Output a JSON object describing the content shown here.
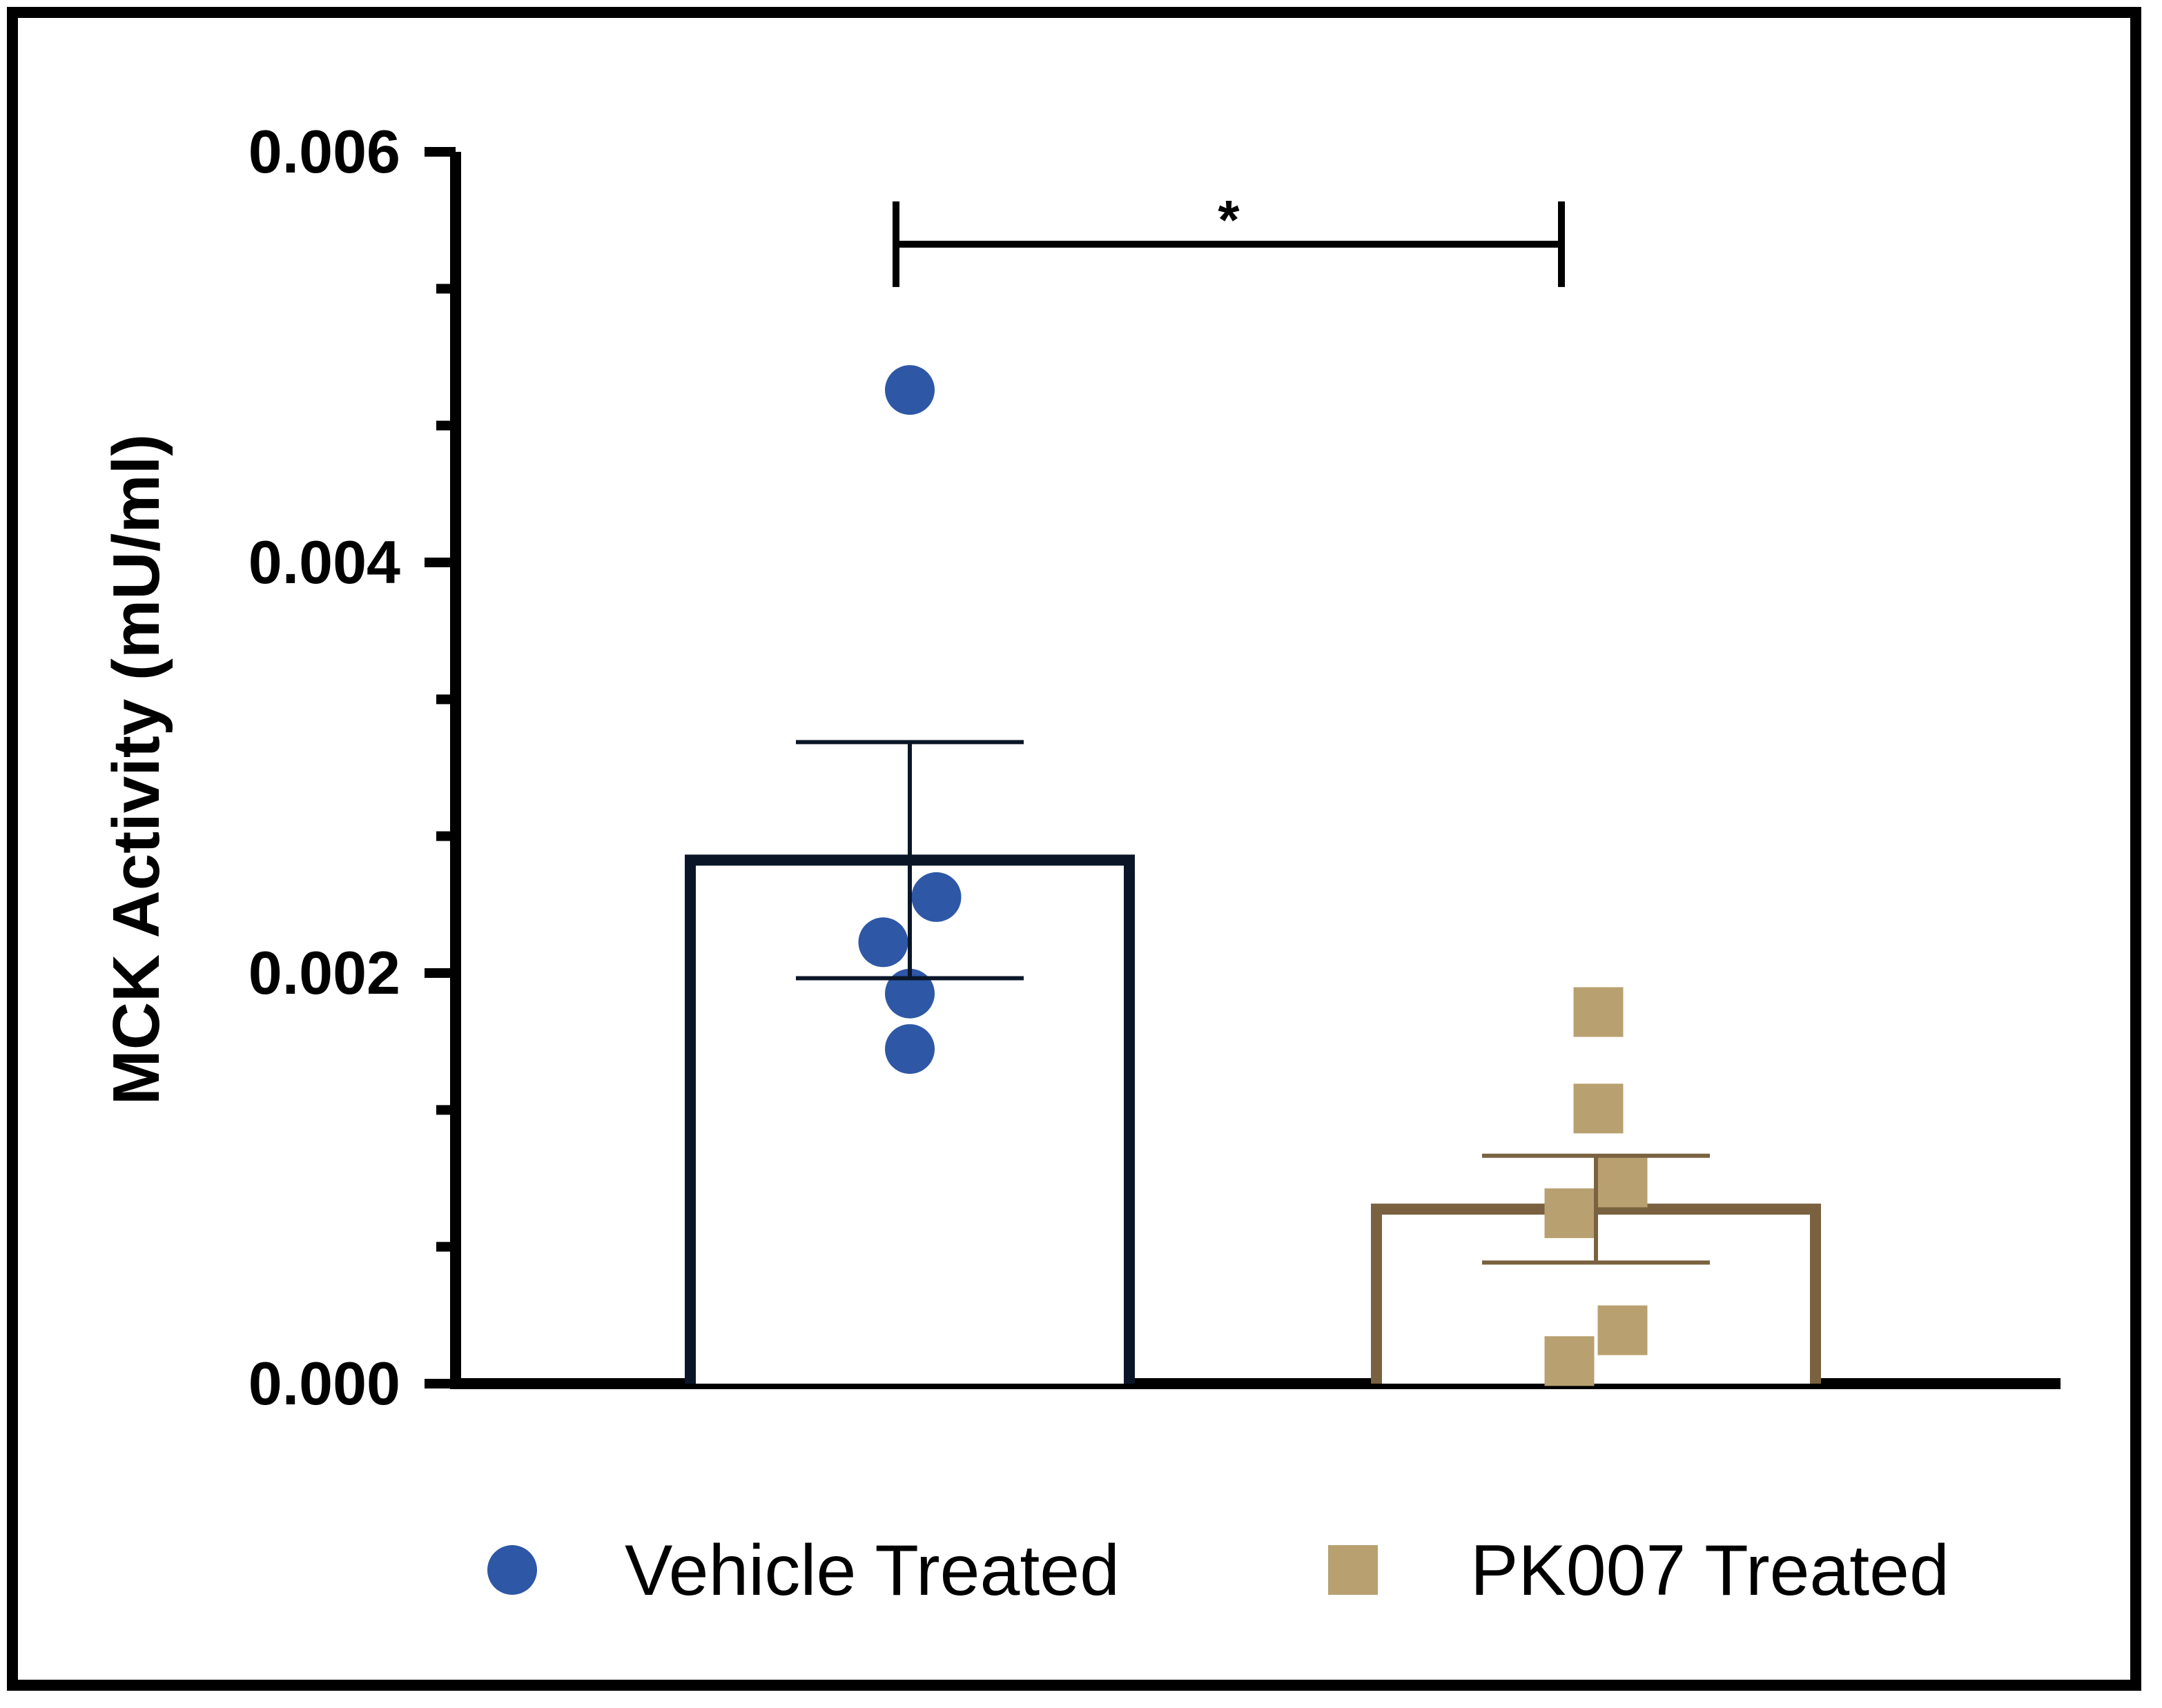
{
  "chart_data": {
    "type": "bar",
    "title": "",
    "xlabel": "",
    "ylabel": "MCK  Activity (mU/ml)",
    "ylim": [
      0,
      0.006
    ],
    "yticks": [
      "0.000",
      "0.002",
      "0.004",
      "0.006"
    ],
    "ytick_values": [
      0,
      0.002,
      0.004,
      0.006
    ],
    "minor_tick_step": 0.00066667,
    "grid": false,
    "legend_position": "bottom",
    "significance": {
      "label": "*",
      "between": [
        0,
        1
      ],
      "y": 0.00555
    },
    "series": [
      {
        "name": "Vehicle Treated",
        "mean": 0.00255,
        "error": 0.000575,
        "bar_color": "#0a1628",
        "marker": "circle",
        "marker_color": "#2e57a6",
        "points": [
          0.00484,
          0.00237,
          0.00215,
          0.0019,
          0.00163
        ],
        "jitter": [
          0,
          0.11,
          -0.11,
          0,
          0
        ]
      },
      {
        "name": "PK007 Treated",
        "mean": 0.00085,
        "error": 0.00026,
        "bar_color": "#7a6240",
        "marker": "square",
        "marker_color": "#b8a070",
        "points": [
          0.00181,
          0.00134,
          0.00098,
          0.00083,
          0.00026,
          0.00011
        ],
        "jitter": [
          0.01,
          0.01,
          0.11,
          -0.11,
          0.11,
          -0.11
        ]
      }
    ]
  }
}
